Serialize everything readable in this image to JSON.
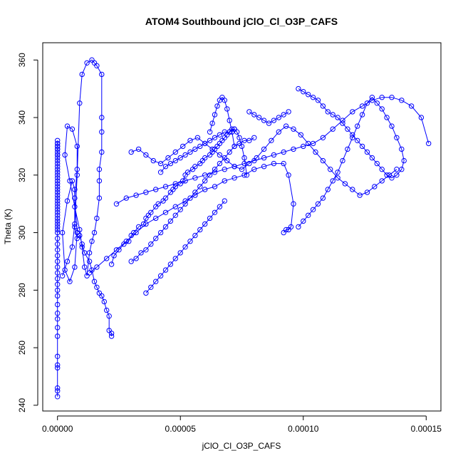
{
  "chart_data": {
    "type": "scatter",
    "title": "ATOM4 Southbound jClO_Cl_O3P_CAFS",
    "xlabel": "jClO_Cl_O3P_CAFS",
    "ylabel": "Theta (K)",
    "xlim": [
      -6e-06,
      0.000156
    ],
    "ylim": [
      238,
      366
    ],
    "x_ticks": [
      "0.00000",
      "0.00005",
      "0.00010",
      "0.00015"
    ],
    "x_tick_values": [
      0,
      5e-05,
      0.0001,
      0.00015
    ],
    "y_ticks": [
      "240",
      "260",
      "280",
      "300",
      "320",
      "340",
      "360"
    ],
    "y_tick_values": [
      240,
      260,
      280,
      300,
      320,
      340,
      360
    ],
    "color": "#0000ff",
    "grid": false,
    "legend": "none",
    "series": [
      {
        "x": [
          0,
          0,
          0,
          0,
          0,
          0,
          0,
          0,
          0,
          0,
          0,
          0,
          0,
          0,
          0,
          0,
          0,
          0,
          0,
          0,
          0,
          0,
          0,
          0,
          0,
          0,
          0,
          0,
          0,
          0,
          0,
          0,
          0,
          0,
          0,
          0,
          0,
          0,
          0,
          0,
          0,
          0,
          0,
          0,
          0,
          0,
          0,
          0,
          0,
          0,
          0,
          0,
          0,
          0,
          0,
          0,
          0,
          0,
          0
        ],
        "y": [
          243,
          245,
          246,
          253,
          254,
          257,
          264,
          267,
          270,
          272,
          275,
          278,
          280,
          282,
          284,
          286,
          288,
          290,
          292,
          294,
          296,
          298,
          300,
          301,
          302,
          303,
          304,
          305,
          306,
          307,
          308,
          309,
          310,
          311,
          312,
          313,
          314,
          315,
          316,
          317,
          318,
          319,
          320,
          321,
          322,
          323,
          324,
          325,
          326,
          327,
          328,
          329,
          330,
          331,
          332,
          331,
          330,
          329,
          327
        ]
      },
      {
        "x": [
          2e-06,
          4e-06,
          6e-06,
          7e-06,
          7e-06,
          6e-06,
          4e-06,
          2e-06,
          3e-06,
          5e-06,
          7e-06,
          8e-06,
          7e-06,
          8e-06,
          8e-06,
          6e-06,
          4e-06,
          3e-06,
          5e-06,
          7e-06,
          9e-06,
          1e-05,
          1.1e-05,
          1.2e-05,
          1.3e-05,
          1.4e-05,
          1.5e-05,
          1.6e-05,
          1.7e-05,
          1.7e-05,
          1.7e-05,
          1.8e-05,
          1.8e-05,
          1.8e-05,
          1.8e-05,
          1.6e-05,
          1.5e-05,
          1.4e-05,
          1.2e-05,
          1e-05,
          9e-06,
          8e-06,
          7e-06,
          8e-06,
          9e-06,
          1e-05,
          1.1e-05,
          1.3e-05,
          1.4e-05,
          1.5e-05,
          1.6e-05,
          1.7e-05,
          1.8e-05,
          1.9e-05,
          2e-05,
          2.1e-05,
          2.1e-05,
          2.2e-05,
          2.2e-05
        ],
        "y": [
          285,
          290,
          295,
          303,
          315,
          318,
          311,
          300,
          287,
          283,
          288,
          300,
          312,
          322,
          330,
          336,
          337,
          327,
          318,
          309,
          301,
          295,
          288,
          285,
          293,
          297,
          300,
          305,
          312,
          318,
          322,
          328,
          335,
          340,
          355,
          358,
          359,
          360,
          359,
          355,
          345,
          320,
          302,
          298,
          299,
          296,
          293,
          290,
          287,
          283,
          281,
          279,
          278,
          276,
          273,
          271,
          266,
          265,
          264
        ]
      },
      {
        "x": [
          2.2e-05,
          2.3e-05,
          2.5e-05,
          2.7e-05,
          2.9e-05,
          3e-05,
          3.1e-05,
          3.3e-05,
          3.5e-05,
          3.6e-05,
          3.7e-05,
          3.8e-05,
          4e-05,
          4.1e-05,
          4.3e-05,
          4.4e-05,
          4.6e-05,
          4.7e-05,
          4.8e-05,
          5e-05,
          5.1e-05,
          5.2e-05,
          5.3e-05,
          5.5e-05,
          5.6e-05,
          5.8e-05,
          5.9e-05,
          6e-05,
          6.2e-05,
          6.3e-05,
          6.4e-05,
          6.5e-05,
          6.6e-05,
          6.7e-05,
          6.8e-05,
          6.9e-05,
          7e-05,
          7.1e-05,
          7.2e-05,
          7.3e-05,
          7.4e-05,
          7.5e-05,
          7.6e-05,
          7.7e-05
        ],
        "y": [
          289,
          292,
          294,
          296,
          297,
          299,
          300,
          302,
          303,
          305,
          306,
          307,
          309,
          310,
          311,
          312,
          314,
          315,
          316,
          317,
          318,
          320,
          321,
          322,
          323,
          324,
          325,
          326,
          327,
          328,
          329,
          330,
          331,
          332,
          333,
          334,
          335,
          336,
          336,
          335,
          333,
          330,
          326,
          320
        ]
      },
      {
        "x": [
          1.3e-05,
          1.6e-05,
          2e-05,
          2.4e-05,
          2.8e-05,
          3.2e-05,
          3.6e-05,
          4e-05,
          4.4e-05,
          4.8e-05,
          5.2e-05,
          5.6e-05,
          6e-05,
          6.4e-05,
          6.8e-05,
          7.2e-05,
          7.6e-05,
          8e-05,
          8.4e-05,
          8.8e-05,
          9.2e-05,
          9.4e-05,
          9.6e-05,
          9.5e-05,
          9.4e-05,
          9.3e-05,
          9.2e-05
        ],
        "y": [
          286,
          288,
          291,
          294,
          297,
          300,
          303,
          305,
          307,
          309,
          311,
          313,
          315,
          316,
          318,
          319,
          320,
          322,
          323,
          324,
          324,
          320,
          310,
          302,
          301,
          301,
          300
        ]
      },
      {
        "x": [
          2.4e-05,
          2.8e-05,
          3.2e-05,
          3.6e-05,
          4e-05,
          4.4e-05,
          4.8e-05,
          5.2e-05,
          5.6e-05,
          6e-05,
          6.4e-05,
          6.8e-05,
          7.2e-05,
          7.6e-05,
          8e-05,
          8.4e-05,
          8.8e-05,
          9.2e-05,
          9.6e-05,
          0.0001,
          0.000104,
          0.000108,
          0.000112,
          0.000116,
          0.00012,
          0.000124,
          0.000128,
          0.000132,
          0.000136,
          0.00014,
          0.000144,
          0.000148,
          0.000151
        ],
        "y": [
          310,
          312,
          313,
          314,
          315,
          316,
          317,
          318,
          319,
          320,
          321,
          322,
          323,
          324,
          325,
          326,
          327,
          328,
          329,
          330,
          331,
          333,
          336,
          339,
          342,
          344,
          346,
          347,
          347,
          346,
          344,
          340,
          331
        ]
      },
      {
        "x": [
          9.8e-05,
          0.0001,
          0.000102,
          0.000104,
          0.000106,
          0.000108,
          0.00011,
          0.000112,
          0.000114,
          0.000116,
          0.000118,
          0.00012,
          0.000122,
          0.000124,
          0.000126,
          0.000128,
          0.00013,
          0.000132,
          0.000134,
          0.000136,
          0.000138,
          0.00014,
          0.000141,
          0.00014,
          0.000138,
          0.000136,
          0.000134,
          0.000132,
          0.00013,
          0.000128,
          0.000126,
          0.000124,
          0.000122,
          0.00012,
          0.000118,
          0.000116,
          0.000114,
          0.000112,
          0.00011,
          0.000108,
          0.000106,
          0.000104,
          0.000102,
          0.0001,
          9.8e-05
        ],
        "y": [
          350,
          349,
          348,
          347,
          346,
          344,
          342,
          341,
          340,
          338,
          336,
          334,
          332,
          330,
          328,
          326,
          324,
          322,
          320,
          319,
          320,
          322,
          325,
          329,
          333,
          337,
          340,
          343,
          345,
          347,
          345,
          341,
          337,
          333,
          329,
          325,
          321,
          318,
          315,
          312,
          310,
          308,
          306,
          304,
          302
        ]
      },
      {
        "x": [
          3e-05,
          3.3e-05,
          3.6e-05,
          3.9e-05,
          4.2e-05,
          4.5e-05,
          4.8e-05,
          5.1e-05,
          5.4e-05,
          5.7e-05,
          6e-05,
          6.3e-05,
          6.6e-05,
          6.9e-05,
          7.2e-05,
          7.5e-05,
          7.8e-05,
          8.1e-05,
          8.4e-05,
          8.7e-05,
          9e-05,
          9.3e-05,
          9.6e-05,
          9.9e-05,
          0.000102,
          0.000105,
          0.000108,
          0.000111,
          0.000114,
          0.000117,
          0.00012,
          0.000123,
          0.000126,
          0.000129,
          0.000132,
          0.000135,
          0.000138
        ],
        "y": [
          328,
          329,
          327,
          325,
          324,
          326,
          328,
          330,
          332,
          333,
          331,
          329,
          327,
          325,
          323,
          322,
          324,
          326,
          329,
          332,
          335,
          337,
          336,
          334,
          331,
          328,
          325,
          322,
          319,
          317,
          315,
          313,
          314,
          316,
          318,
          320,
          322
        ]
      },
      {
        "x": [
          3e-05,
          3.2e-05,
          3.4e-05,
          3.6e-05,
          3.8e-05,
          4e-05,
          4.2e-05,
          4.4e-05,
          4.6e-05,
          4.8e-05,
          5e-05,
          5.2e-05,
          5.4e-05,
          5.6e-05,
          5.8e-05,
          6e-05,
          6.2e-05,
          6.4e-05,
          6.6e-05,
          6.8e-05,
          7e-05,
          7.2e-05,
          7.4e-05,
          7.6e-05,
          7.8e-05,
          8e-05
        ],
        "y": [
          290,
          291,
          293,
          294,
          296,
          298,
          300,
          302,
          304,
          306,
          308,
          310,
          312,
          314,
          316,
          318,
          320,
          322,
          324,
          326,
          328,
          330,
          331,
          332,
          332,
          333
        ]
      },
      {
        "x": [
          3.6e-05,
          3.8e-05,
          4e-05,
          4.2e-05,
          4.4e-05,
          4.6e-05,
          4.8e-05,
          5e-05,
          5.2e-05,
          5.4e-05,
          5.6e-05,
          5.8e-05,
          6e-05,
          6.2e-05,
          6.4e-05,
          6.6e-05,
          6.8e-05
        ],
        "y": [
          279,
          281,
          283,
          285,
          287,
          289,
          291,
          293,
          295,
          297,
          299,
          301,
          303,
          305,
          307,
          309,
          311
        ]
      },
      {
        "x": [
          4.2e-05,
          4.4e-05,
          4.6e-05,
          4.8e-05,
          5e-05,
          5.2e-05,
          5.4e-05,
          5.6e-05,
          5.8e-05,
          6e-05,
          6.2e-05,
          6.4e-05,
          6.6e-05,
          6.8e-05,
          7e-05,
          7.2e-05
        ],
        "y": [
          321,
          323,
          324,
          325,
          326,
          327,
          328,
          329,
          330,
          331,
          332,
          333,
          334,
          335,
          335,
          336
        ]
      },
      {
        "x": [
          6.2e-05,
          6.3e-05,
          6.4e-05,
          6.5e-05,
          6.6e-05,
          6.7e-05,
          6.8e-05,
          6.9e-05,
          7e-05,
          7.1e-05,
          7.2e-05
        ],
        "y": [
          335,
          338,
          341,
          344,
          346,
          347,
          346,
          343,
          339,
          335,
          330
        ]
      },
      {
        "x": [
          7.8e-05,
          8e-05,
          8.2e-05,
          8.4e-05,
          8.6e-05,
          8.8e-05,
          9e-05,
          9.2e-05,
          9.4e-05
        ],
        "y": [
          342,
          341,
          340,
          339,
          338,
          339,
          340,
          341,
          342
        ]
      }
    ]
  }
}
